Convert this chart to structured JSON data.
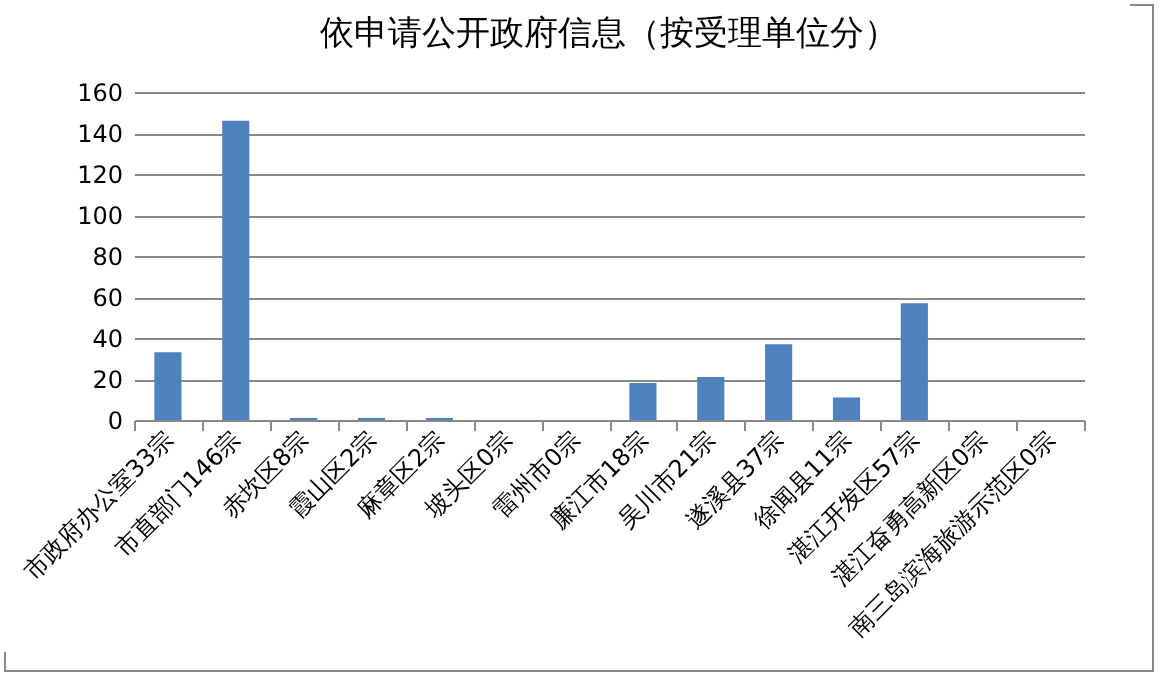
{
  "chart_data": {
    "type": "bar",
    "title": "依申请公开政府信息（按受理单位分）",
    "categories": [
      "市政府办公室33宗",
      "市直部门146宗",
      "赤坎区8宗",
      "霞山区2宗",
      "麻章区2宗",
      "坡头区0宗",
      "雷州市0宗",
      "廉江市18宗",
      "吴川市21宗",
      "遂溪县37宗",
      "徐闻县11宗",
      "湛江开发区57宗",
      "湛江奋勇高新区0宗",
      "南三岛滨海旅游示范区0宗"
    ],
    "values": [
      33,
      146,
      1,
      1,
      1,
      0,
      0,
      18,
      21,
      37,
      11,
      57,
      0,
      0
    ],
    "color": "#4f81bd",
    "ylim": [
      0,
      160
    ],
    "yticks": [
      0,
      20,
      40,
      60,
      80,
      100,
      120,
      140,
      160
    ],
    "grid": "y"
  }
}
